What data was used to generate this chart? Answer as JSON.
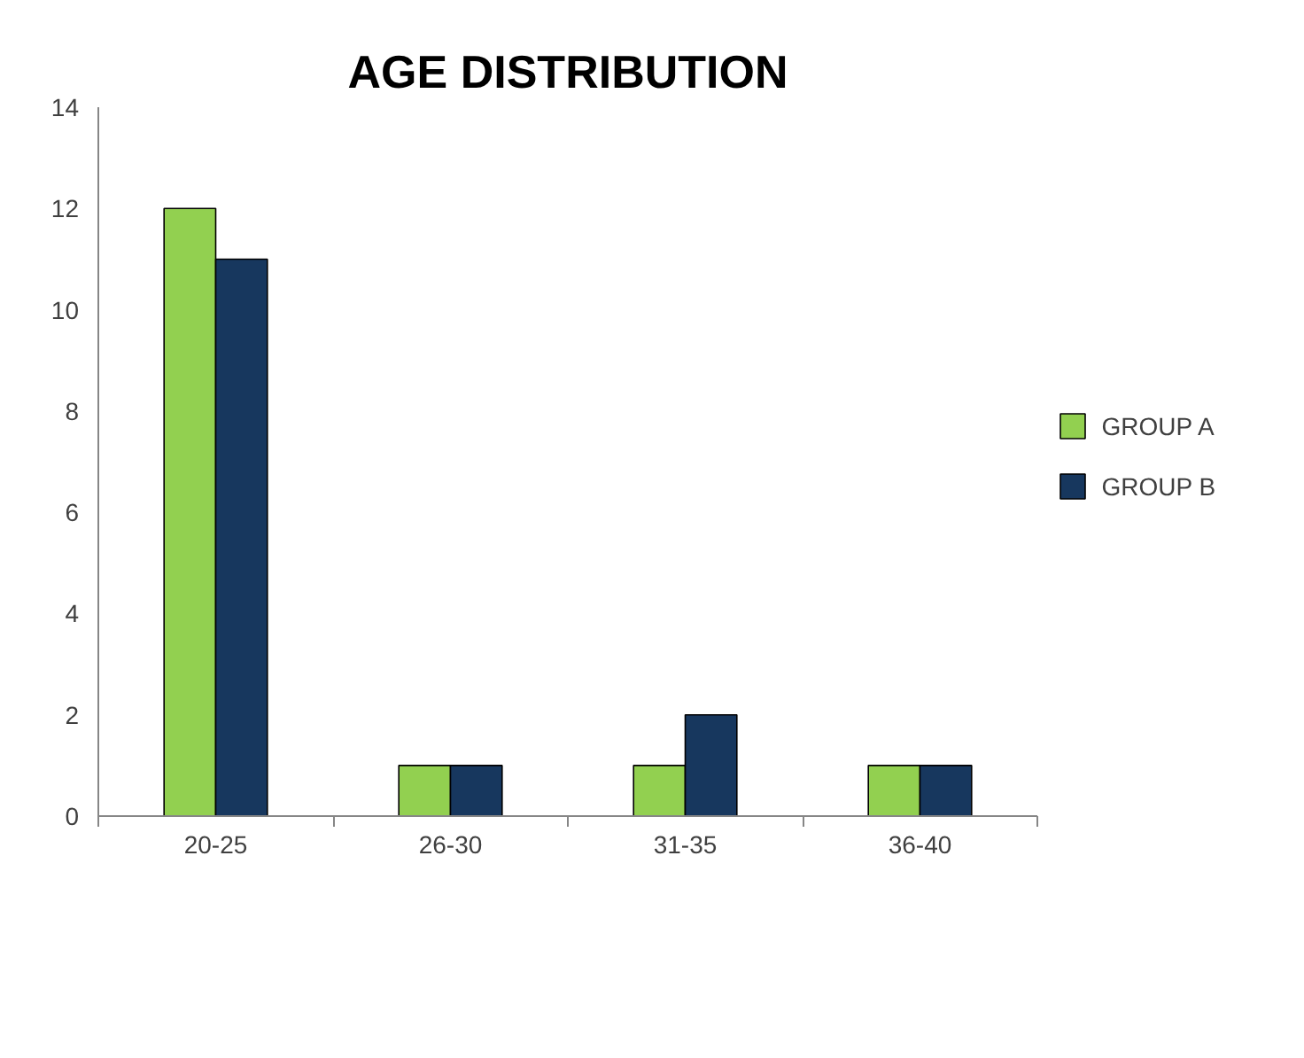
{
  "chart_data": {
    "type": "bar",
    "title": "AGE DISTRIBUTION",
    "categories": [
      "20-25",
      "26-30",
      "31-35",
      "36-40"
    ],
    "series": [
      {
        "name": "GROUP A",
        "color": "#92d050",
        "values": [
          12,
          1,
          1,
          1
        ]
      },
      {
        "name": "GROUP B",
        "color": "#17375e",
        "values": [
          11,
          1,
          2,
          1
        ]
      }
    ],
    "ylim": [
      0,
      14
    ],
    "yticks": [
      0,
      2,
      4,
      6,
      8,
      10,
      12,
      14
    ],
    "grid": false,
    "legend": "right"
  }
}
